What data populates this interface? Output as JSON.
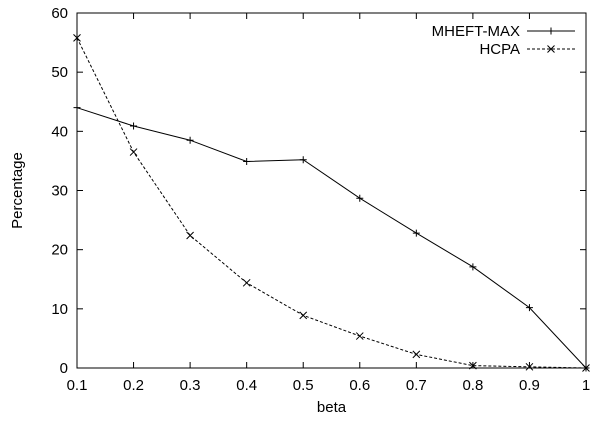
{
  "chart_data": {
    "type": "line",
    "title": "",
    "xlabel": "beta",
    "ylabel": "Percentage",
    "xlim": [
      0.1,
      1
    ],
    "ylim": [
      0,
      60
    ],
    "grid": false,
    "legend_position": "top-right",
    "x_ticks": [
      "0.1",
      "0.2",
      "0.3",
      "0.4",
      "0.5",
      "0.6",
      "0.7",
      "0.8",
      "0.9",
      "1"
    ],
    "y_ticks": [
      "0",
      "10",
      "20",
      "30",
      "40",
      "50",
      "60"
    ],
    "x": [
      0.1,
      0.2,
      0.3,
      0.4,
      0.5,
      0.6,
      0.7,
      0.8,
      0.9,
      1.0
    ],
    "series": [
      {
        "name": "MHEFT-MAX",
        "marker": "plus",
        "line_style": "solid",
        "color": "#000000",
        "values": [
          44.0,
          40.9,
          38.5,
          34.9,
          35.2,
          28.7,
          22.8,
          17.1,
          10.2,
          0.0
        ]
      },
      {
        "name": "HCPA",
        "marker": "cross",
        "line_style": "dashed",
        "color": "#000000",
        "values": [
          55.8,
          36.5,
          22.4,
          14.4,
          8.9,
          5.4,
          2.3,
          0.4,
          0.2,
          0.0
        ]
      }
    ]
  }
}
